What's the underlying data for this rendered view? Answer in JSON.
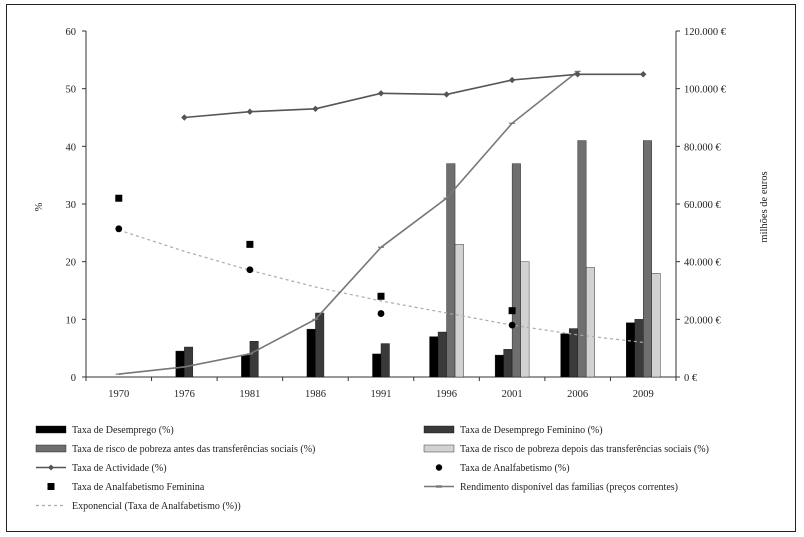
{
  "chart_data": {
    "type": "bar",
    "categories": [
      "1970",
      "1976",
      "1981",
      "1986",
      "1991",
      "1996",
      "2001",
      "2006",
      "2009"
    ],
    "ylabel_left": "%",
    "ylabel_right": "milhões de euros",
    "ylim_left": [
      0,
      60
    ],
    "ylim_right": [
      0,
      120000
    ],
    "left_ticks": [
      "0",
      "10",
      "20",
      "30",
      "40",
      "50",
      "60"
    ],
    "right_ticks": [
      "0 €",
      "20.000 €",
      "40.000 €",
      "60.000 €",
      "80.000 €",
      "100.000 €",
      "120.000 €"
    ],
    "grid": false,
    "legend_position": "bottom",
    "series": [
      {
        "name": "Taxa de Desemprego (%)",
        "kind": "bar",
        "axis": "left",
        "color": "#000000",
        "values": [
          null,
          4.5,
          3.8,
          8.3,
          4.0,
          7.0,
          3.8,
          7.5,
          9.4
        ]
      },
      {
        "name": "Taxa de Desemprego Feminino (%)",
        "kind": "bar",
        "axis": "left",
        "color": "#3a3a3a",
        "values": [
          null,
          5.2,
          6.2,
          11.1,
          5.8,
          7.8,
          4.8,
          8.4,
          10.0
        ]
      },
      {
        "name": "Taxa de risco de pobreza antes das transferências sociais (%)",
        "kind": "bar",
        "axis": "left",
        "color": "#6f6f6f",
        "values": [
          null,
          null,
          null,
          null,
          null,
          37.0,
          37.0,
          41.0,
          41.0
        ]
      },
      {
        "name": "Taxa de risco de pobreza depois das transferências sociais (%)",
        "kind": "bar",
        "axis": "left",
        "color": "#d2d2d2",
        "values": [
          null,
          null,
          null,
          null,
          null,
          23.0,
          20.0,
          19.0,
          18.0
        ]
      },
      {
        "name": "Taxa de Actividade (%)",
        "kind": "line",
        "axis": "left",
        "color": "#555555",
        "values": [
          null,
          45.0,
          46.0,
          46.5,
          49.2,
          49.0,
          51.5,
          52.5,
          52.5
        ]
      },
      {
        "name": "Taxa de Analfabetismo (%)",
        "kind": "scatter",
        "axis": "left",
        "color": "#000000",
        "values": [
          25.7,
          null,
          18.6,
          null,
          11.0,
          null,
          9.0,
          null,
          null
        ]
      },
      {
        "name": "Taxa de Analfabetismo Feminina",
        "kind": "scatter_square",
        "axis": "left",
        "color": "#000000",
        "values": [
          31.0,
          null,
          23.0,
          null,
          14.0,
          null,
          11.5,
          null,
          null
        ]
      },
      {
        "name": "Rendimento disponível das famílias (preços correntes)",
        "kind": "line",
        "axis": "right",
        "color": "#777777",
        "values": [
          1000,
          3500,
          8000,
          20000,
          45000,
          62000,
          88000,
          106000,
          null
        ]
      },
      {
        "name": "Exponencial (Taxa de Analfabetismo (%))",
        "kind": "trend",
        "axis": "left",
        "color": "#aaaaaa",
        "values": [
          25.5,
          21.8,
          18.5,
          15.6,
          13.2,
          11.1,
          9.0,
          7.3,
          6.0
        ]
      }
    ]
  },
  "legend": {
    "items": [
      {
        "label": "Taxa de Desemprego (%)",
        "swatch": "bar",
        "color": "#000000"
      },
      {
        "label": "Taxa de Desemprego Feminino (%)",
        "swatch": "bar",
        "color": "#3a3a3a"
      },
      {
        "label": "Taxa de risco de pobreza antes das transferências sociais (%)",
        "swatch": "bar",
        "color": "#6f6f6f"
      },
      {
        "label": "Taxa de risco de pobreza depois das transferências sociais (%)",
        "swatch": "bar",
        "color": "#d2d2d2"
      },
      {
        "label": "Taxa de Actividade (%)",
        "swatch": "line-marker",
        "color": "#555555"
      },
      {
        "label": "Taxa de Analfabetismo (%)",
        "swatch": "dot",
        "color": "#000000"
      },
      {
        "label": "Taxa de Analfabetismo Feminina",
        "swatch": "square",
        "color": "#000000"
      },
      {
        "label": "Rendimento disponível das famílias (preços correntes)",
        "swatch": "line",
        "color": "#777777"
      },
      {
        "label": "Exponencial (Taxa de Analfabetismo (%))",
        "swatch": "dashed",
        "color": "#aaaaaa"
      }
    ]
  }
}
